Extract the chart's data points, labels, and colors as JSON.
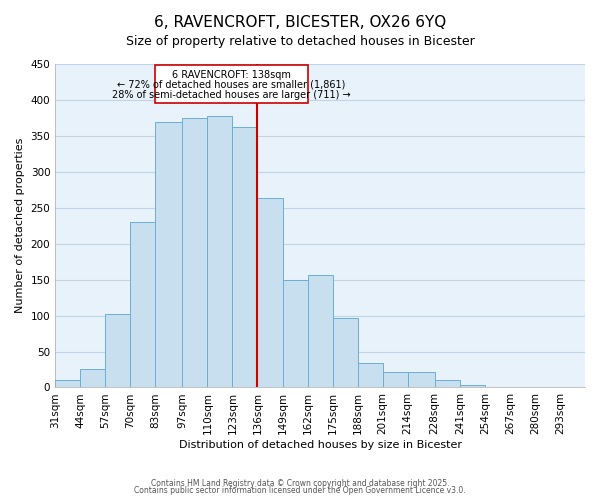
{
  "title": "6, RAVENCROFT, BICESTER, OX26 6YQ",
  "subtitle": "Size of property relative to detached houses in Bicester",
  "xlabel": "Distribution of detached houses by size in Bicester",
  "ylabel": "Number of detached properties",
  "bar_color": "#c8dff0",
  "bar_edge_color": "#6aaed6",
  "plot_bg_color": "#e8f2fa",
  "grid_color": "#c0d4e8",
  "background_color": "#ffffff",
  "bins": [
    31,
    44,
    57,
    70,
    83,
    97,
    110,
    123,
    136,
    149,
    162,
    175,
    188,
    201,
    214,
    228,
    241,
    254,
    267,
    280,
    293,
    306
  ],
  "bar_heights": [
    10,
    25,
    102,
    230,
    370,
    375,
    377,
    362,
    263,
    150,
    156,
    97,
    34,
    21,
    21,
    10,
    3,
    1,
    0,
    0,
    0
  ],
  "vline_x": 136,
  "vline_color": "#cc0000",
  "annotation_line1": "6 RAVENCROFT: 138sqm",
  "annotation_line2": "← 72% of detached houses are smaller (1,861)",
  "annotation_line3": "28% of semi-detached houses are larger (711) →",
  "annotation_box_color": "#ffffff",
  "annotation_box_edge": "#cc0000",
  "ylim": [
    0,
    450
  ],
  "yticks": [
    0,
    50,
    100,
    150,
    200,
    250,
    300,
    350,
    400,
    450
  ],
  "footer_line1": "Contains HM Land Registry data © Crown copyright and database right 2025.",
  "footer_line2": "Contains public sector information licensed under the Open Government Licence v3.0.",
  "title_fontsize": 11,
  "tick_labels": [
    "31sqm",
    "44sqm",
    "57sqm",
    "70sqm",
    "83sqm",
    "97sqm",
    "110sqm",
    "123sqm",
    "136sqm",
    "149sqm",
    "162sqm",
    "175sqm",
    "188sqm",
    "201sqm",
    "214sqm",
    "228sqm",
    "241sqm",
    "254sqm",
    "267sqm",
    "280sqm",
    "293sqm"
  ]
}
